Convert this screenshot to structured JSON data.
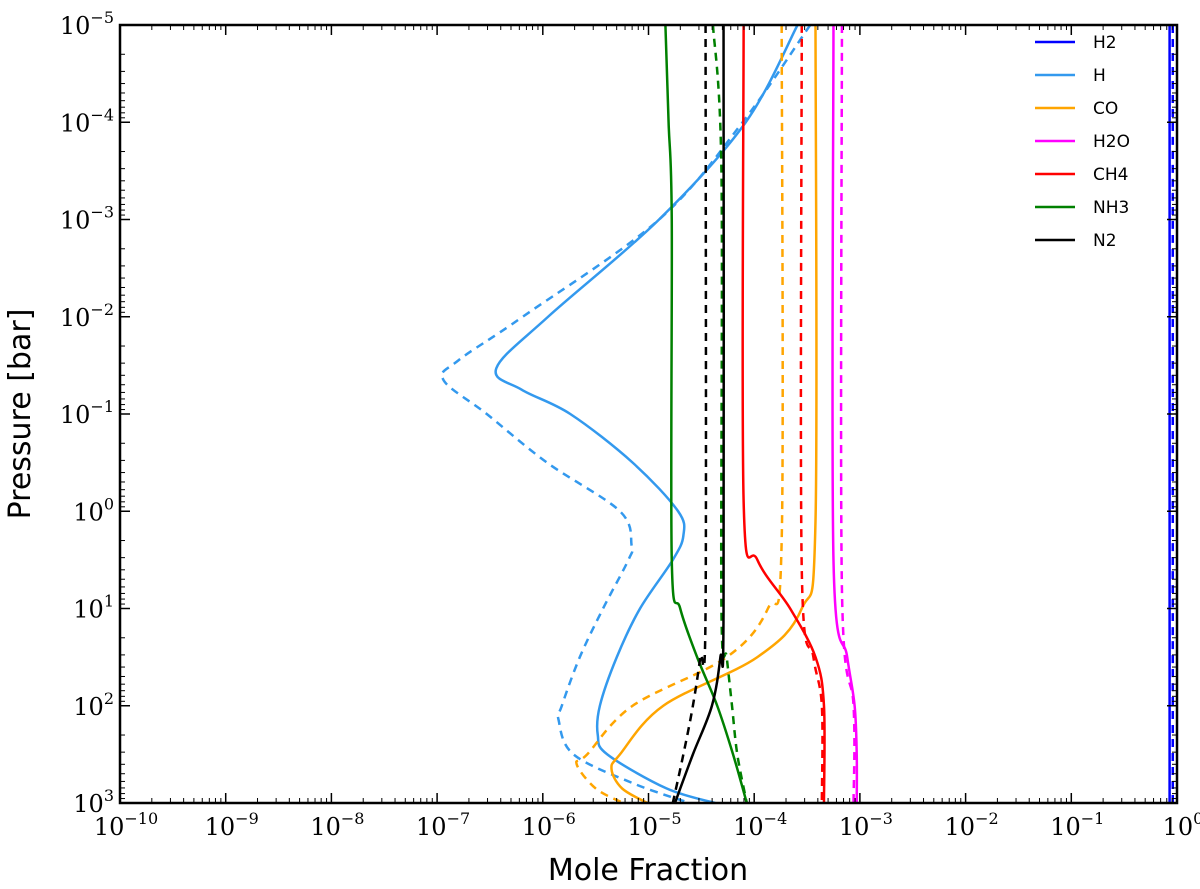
{
  "chart_data": {
    "type": "line",
    "title": "",
    "xlabel": "Mole Fraction",
    "ylabel": "Pressure [bar]",
    "xscale": "log",
    "yscale": "log",
    "xlim_log10": [
      -10,
      0
    ],
    "ylim_log10": [
      -5,
      3
    ],
    "y_inverted": true,
    "grid": false,
    "legend_position": "top-right",
    "x_tick_labels": [
      {
        "base": "10",
        "exp": "−10"
      },
      {
        "base": "10",
        "exp": "−9"
      },
      {
        "base": "10",
        "exp": "−8"
      },
      {
        "base": "10",
        "exp": "−7"
      },
      {
        "base": "10",
        "exp": "−6"
      },
      {
        "base": "10",
        "exp": "−5"
      },
      {
        "base": "10",
        "exp": "−4"
      },
      {
        "base": "10",
        "exp": "−3"
      },
      {
        "base": "10",
        "exp": "−2"
      },
      {
        "base": "10",
        "exp": "−1"
      },
      {
        "base": "10",
        "exp": "0"
      }
    ],
    "y_tick_labels": [
      {
        "base": "10",
        "exp": "−5"
      },
      {
        "base": "10",
        "exp": "−4"
      },
      {
        "base": "10",
        "exp": "−3"
      },
      {
        "base": "10",
        "exp": "−2"
      },
      {
        "base": "10",
        "exp": "−1"
      },
      {
        "base": "10",
        "exp": "0"
      },
      {
        "base": "10",
        "exp": "1"
      },
      {
        "base": "10",
        "exp": "2"
      },
      {
        "base": "10",
        "exp": "3"
      }
    ],
    "note": "points are [log10(mole fraction), log10(pressure/bar)]",
    "series": [
      {
        "name": "H2",
        "color": "#0000ff",
        "dash": false,
        "legend": true,
        "points": [
          [
            -0.07,
            -5
          ],
          [
            -0.07,
            3
          ]
        ]
      },
      {
        "name": "H2 (dashed)",
        "color": "#0000ff",
        "dash": true,
        "legend": false,
        "points": [
          [
            -0.04,
            -5
          ],
          [
            -0.04,
            3
          ]
        ]
      },
      {
        "name": "H",
        "color": "#3399ee",
        "dash": false,
        "legend": true,
        "points": [
          [
            -3.59,
            -5
          ],
          [
            -4.08,
            -4
          ],
          [
            -4.9,
            -3
          ],
          [
            -5.95,
            -2
          ],
          [
            -6.44,
            -1.47
          ],
          [
            -6.2,
            -1.25
          ],
          [
            -5.74,
            -1
          ],
          [
            -5.15,
            -0.5
          ],
          [
            -4.72,
            0
          ],
          [
            -4.67,
            0.25
          ],
          [
            -4.77,
            0.5
          ],
          [
            -5.08,
            1
          ],
          [
            -5.3,
            1.5
          ],
          [
            -5.46,
            2
          ],
          [
            -5.48,
            2.3
          ],
          [
            -5.39,
            2.5
          ],
          [
            -4.83,
            2.85
          ],
          [
            -4.37,
            3
          ]
        ]
      },
      {
        "name": "H (dashed)",
        "color": "#3399ee",
        "dash": true,
        "legend": false,
        "points": [
          [
            -3.47,
            -5
          ],
          [
            -4.11,
            -4
          ],
          [
            -4.9,
            -3
          ],
          [
            -6.19,
            -2
          ],
          [
            -6.8,
            -1.55
          ],
          [
            -6.94,
            -1.35
          ],
          [
            -6.53,
            -1
          ],
          [
            -5.96,
            -0.5
          ],
          [
            -5.27,
            0
          ],
          [
            -5.16,
            0.35
          ],
          [
            -5.19,
            0.5
          ],
          [
            -5.43,
            1
          ],
          [
            -5.65,
            1.5
          ],
          [
            -5.82,
            2
          ],
          [
            -5.85,
            2.15
          ],
          [
            -5.71,
            2.5
          ],
          [
            -5.14,
            2.8
          ],
          [
            -4.61,
            3
          ]
        ]
      },
      {
        "name": "CO",
        "color": "#ffa500",
        "dash": false,
        "legend": true,
        "points": [
          [
            -3.42,
            -5
          ],
          [
            -3.42,
            0.1
          ],
          [
            -3.55,
            1
          ],
          [
            -3.97,
            1.5
          ],
          [
            -4.86,
            2
          ],
          [
            -5.27,
            2.5
          ],
          [
            -5.35,
            2.65
          ],
          [
            -5.25,
            2.85
          ],
          [
            -5.01,
            3
          ]
        ]
      },
      {
        "name": "CO (dashed)",
        "color": "#ffa500",
        "dash": true,
        "legend": false,
        "points": [
          [
            -3.74,
            -5
          ],
          [
            -3.74,
            0.3
          ],
          [
            -3.87,
            1
          ],
          [
            -4.26,
            1.5
          ],
          [
            -5.15,
            2
          ],
          [
            -5.58,
            2.5
          ],
          [
            -5.68,
            2.6
          ],
          [
            -5.5,
            2.85
          ],
          [
            -5.24,
            3
          ]
        ]
      },
      {
        "name": "H2O",
        "color": "#ff00ff",
        "dash": false,
        "legend": true,
        "points": [
          [
            -3.25,
            -5
          ],
          [
            -3.25,
            0.5
          ],
          [
            -3.12,
            1.5
          ],
          [
            -3.05,
            2
          ],
          [
            -3.03,
            2.5
          ],
          [
            -3.03,
            3
          ]
        ]
      },
      {
        "name": "H2O (dashed)",
        "color": "#ff00ff",
        "dash": true,
        "legend": false,
        "points": [
          [
            -3.17,
            -5
          ],
          [
            -3.17,
            0.8
          ],
          [
            -3.06,
            2
          ],
          [
            -3.06,
            3
          ]
        ]
      },
      {
        "name": "CH4",
        "color": "#ff0000",
        "dash": false,
        "legend": true,
        "points": [
          [
            -4.1,
            -5
          ],
          [
            -4.1,
            -0.1
          ],
          [
            -3.97,
            0.5
          ],
          [
            -3.66,
            1
          ],
          [
            -3.42,
            1.5
          ],
          [
            -3.34,
            2
          ],
          [
            -3.34,
            3
          ]
        ]
      },
      {
        "name": "CH4 (dashed)",
        "color": "#ff0000",
        "dash": true,
        "legend": false,
        "points": [
          [
            -3.55,
            -5
          ],
          [
            -3.55,
            0.6
          ],
          [
            -3.44,
            1.5
          ],
          [
            -3.36,
            2
          ],
          [
            -3.36,
            3
          ]
        ]
      },
      {
        "name": "NH3",
        "color": "#008000",
        "dash": false,
        "legend": true,
        "points": [
          [
            -4.84,
            -5
          ],
          [
            -4.81,
            -4
          ],
          [
            -4.78,
            -3
          ],
          [
            -4.78,
            0.5
          ],
          [
            -4.7,
            1
          ],
          [
            -4.54,
            1.5
          ],
          [
            -4.35,
            2
          ],
          [
            -4.2,
            2.5
          ],
          [
            -4.07,
            3
          ]
        ]
      },
      {
        "name": "NH3 (dashed)",
        "color": "#008000",
        "dash": true,
        "legend": false,
        "points": [
          [
            -4.39,
            -5
          ],
          [
            -4.31,
            -3.5
          ],
          [
            -4.31,
            1
          ],
          [
            -4.26,
            1.5
          ],
          [
            -4.21,
            2
          ],
          [
            -4.16,
            2.5
          ],
          [
            -4.07,
            3
          ]
        ]
      },
      {
        "name": "N2",
        "color": "#000000",
        "dash": false,
        "legend": true,
        "points": [
          [
            -4.29,
            -5
          ],
          [
            -4.29,
            1
          ],
          [
            -4.32,
            1.5
          ],
          [
            -4.4,
            2
          ],
          [
            -4.58,
            2.5
          ],
          [
            -4.75,
            3
          ]
        ]
      },
      {
        "name": "N2 (dashed)",
        "color": "#000000",
        "dash": true,
        "legend": false,
        "points": [
          [
            -4.46,
            -5
          ],
          [
            -4.46,
            1
          ],
          [
            -4.51,
            1.5
          ],
          [
            -4.58,
            2
          ],
          [
            -4.67,
            2.5
          ],
          [
            -4.77,
            3
          ]
        ]
      }
    ]
  }
}
